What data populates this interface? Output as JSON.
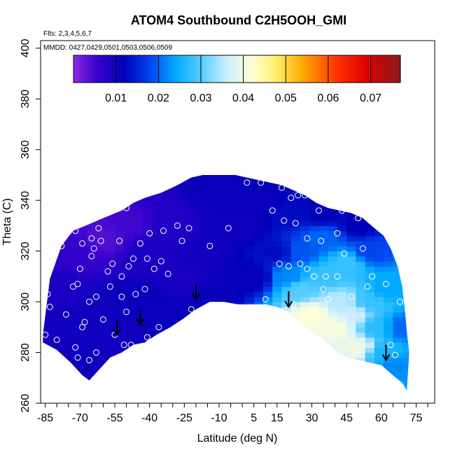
{
  "chart_data": {
    "type": "heatmap",
    "title": "ATOM4 Southbound C2H5OOH_GMI",
    "flights_note": "Flts: 2,3,4,5,6,7",
    "dates_note": "MMDD: 0427,0429,0501,0503,0506,0509",
    "xlabel": "Latitude (deg N)",
    "ylabel": "Theta (C)",
    "xlim": [
      -87,
      83
    ],
    "ylim": [
      260,
      403
    ],
    "x_ticks": [
      -85,
      -70,
      -55,
      -40,
      -25,
      -10,
      5,
      15,
      30,
      45,
      60,
      75
    ],
    "x_minor_step": 5,
    "y_ticks": [
      260,
      280,
      300,
      320,
      340,
      360,
      380,
      400
    ],
    "colorbar": {
      "range": [
        0,
        0.077
      ],
      "ticks": [
        0.01,
        0.02,
        0.03,
        0.04,
        0.05,
        0.06,
        0.07
      ],
      "tick_labels": [
        "0.01",
        "0.02",
        "0.03",
        "0.04",
        "0.05",
        "0.06",
        "0.07"
      ],
      "stops": [
        {
          "v": 0.0,
          "c": "#8a2be2"
        },
        {
          "v": 0.006,
          "c": "#3300cc"
        },
        {
          "v": 0.012,
          "c": "#0000b8"
        },
        {
          "v": 0.018,
          "c": "#0044ee"
        },
        {
          "v": 0.024,
          "c": "#00aaff"
        },
        {
          "v": 0.03,
          "c": "#55ccff"
        },
        {
          "v": 0.036,
          "c": "#cceeff"
        },
        {
          "v": 0.042,
          "c": "#ffffd8"
        },
        {
          "v": 0.048,
          "c": "#ffee66"
        },
        {
          "v": 0.054,
          "c": "#ffaa00"
        },
        {
          "v": 0.062,
          "c": "#ff3300"
        },
        {
          "v": 0.069,
          "c": "#dd0000"
        },
        {
          "v": 0.077,
          "c": "#8b1a1a"
        }
      ]
    },
    "domain_top": [
      [
        -86,
        287
      ],
      [
        -83,
        309
      ],
      [
        -78,
        322
      ],
      [
        -73,
        328
      ],
      [
        -65,
        331
      ],
      [
        -60,
        333
      ],
      [
        -52,
        336
      ],
      [
        -47,
        339
      ],
      [
        -42,
        341
      ],
      [
        -35,
        343
      ],
      [
        -28,
        346
      ],
      [
        -22,
        349
      ],
      [
        -17,
        350
      ],
      [
        -10,
        350
      ],
      [
        -3,
        350
      ],
      [
        2,
        349
      ],
      [
        7,
        348
      ],
      [
        12,
        347
      ],
      [
        17,
        346
      ],
      [
        22,
        344
      ],
      [
        27,
        342
      ],
      [
        32,
        339
      ],
      [
        37,
        337
      ],
      [
        42,
        336
      ],
      [
        47,
        335
      ],
      [
        52,
        333
      ],
      [
        57,
        329
      ],
      [
        61,
        326
      ],
      [
        64,
        321
      ],
      [
        67,
        314
      ],
      [
        69,
        306
      ],
      [
        70,
        298
      ],
      [
        71,
        288
      ],
      [
        72,
        280
      ],
      [
        71,
        265
      ]
    ],
    "domain_bottom": [
      [
        -86,
        284
      ],
      [
        -80,
        281
      ],
      [
        -74,
        276
      ],
      [
        -69,
        271
      ],
      [
        -66,
        269
      ],
      [
        -62,
        273
      ],
      [
        -57,
        278
      ],
      [
        -52,
        280
      ],
      [
        -47,
        283
      ],
      [
        -42,
        284
      ],
      [
        -37,
        287
      ],
      [
        -31,
        290
      ],
      [
        -26,
        293
      ],
      [
        -20,
        297
      ],
      [
        -14,
        300
      ],
      [
        -8,
        300
      ],
      [
        -2,
        299
      ],
      [
        4,
        299
      ],
      [
        10,
        299
      ],
      [
        15,
        298
      ],
      [
        20,
        296
      ],
      [
        25,
        292
      ],
      [
        30,
        288
      ],
      [
        35,
        285
      ],
      [
        40,
        281
      ],
      [
        45,
        278
      ],
      [
        50,
        277
      ],
      [
        55,
        276
      ],
      [
        60,
        275
      ],
      [
        65,
        271
      ],
      [
        69,
        268
      ],
      [
        71,
        265
      ]
    ],
    "field_anchors": [
      [
        -70,
        320,
        0.006
      ],
      [
        -60,
        325,
        0.004
      ],
      [
        -50,
        330,
        0.005
      ],
      [
        -80,
        305,
        0.009
      ],
      [
        -75,
        290,
        0.01
      ],
      [
        -60,
        290,
        0.01
      ],
      [
        -45,
        300,
        0.011
      ],
      [
        -40,
        320,
        0.009
      ],
      [
        -30,
        330,
        0.008
      ],
      [
        -25,
        310,
        0.009
      ],
      [
        -15,
        320,
        0.01
      ],
      [
        -10,
        305,
        0.011
      ],
      [
        0,
        330,
        0.01
      ],
      [
        5,
        310,
        0.011
      ],
      [
        -5,
        342,
        0.011
      ],
      [
        10,
        340,
        0.011
      ],
      [
        15,
        320,
        0.013
      ],
      [
        20,
        335,
        0.013
      ],
      [
        20,
        310,
        0.022
      ],
      [
        25,
        305,
        0.03
      ],
      [
        25,
        320,
        0.019
      ],
      [
        30,
        295,
        0.042
      ],
      [
        35,
        310,
        0.028
      ],
      [
        35,
        325,
        0.02
      ],
      [
        40,
        290,
        0.041
      ],
      [
        42,
        300,
        0.035
      ],
      [
        45,
        315,
        0.028
      ],
      [
        48,
        295,
        0.036
      ],
      [
        50,
        282,
        0.04
      ],
      [
        55,
        300,
        0.028
      ],
      [
        58,
        290,
        0.027
      ],
      [
        55,
        320,
        0.018
      ],
      [
        60,
        280,
        0.026
      ],
      [
        62,
        305,
        0.024
      ],
      [
        65,
        275,
        0.022
      ],
      [
        68,
        290,
        0.02
      ],
      [
        50,
        330,
        0.012
      ],
      [
        35,
        335,
        0.012
      ]
    ],
    "observations": [
      [
        -85,
        287
      ],
      [
        -84,
        303
      ],
      [
        -83,
        298
      ],
      [
        -82,
        320
      ],
      [
        -80,
        285
      ],
      [
        -78,
        322
      ],
      [
        -76,
        295
      ],
      [
        -74,
        274
      ],
      [
        -73,
        306
      ],
      [
        -72,
        328
      ],
      [
        -72,
        282
      ],
      [
        -71,
        269
      ],
      [
        -71,
        278
      ],
      [
        -71,
        307
      ],
      [
        -70,
        331
      ],
      [
        -70,
        313
      ],
      [
        -69,
        323
      ],
      [
        -69,
        290
      ],
      [
        -68,
        292
      ],
      [
        -66,
        277
      ],
      [
        -66,
        300
      ],
      [
        -65,
        318
      ],
      [
        -65,
        325
      ],
      [
        -64,
        321
      ],
      [
        -63,
        302
      ],
      [
        -63,
        280
      ],
      [
        -62,
        329
      ],
      [
        -61,
        324
      ],
      [
        -60,
        293
      ],
      [
        -58,
        312
      ],
      [
        -57,
        306
      ],
      [
        -56,
        315
      ],
      [
        -55,
        287
      ],
      [
        -53,
        324
      ],
      [
        -52,
        310
      ],
      [
        -52,
        302
      ],
      [
        -51,
        283
      ],
      [
        -50,
        296
      ],
      [
        -50,
        337
      ],
      [
        -49,
        314
      ],
      [
        -48,
        283
      ],
      [
        -47,
        317
      ],
      [
        -46,
        303
      ],
      [
        -44,
        323
      ],
      [
        -42,
        305
      ],
      [
        -41,
        317
      ],
      [
        -41,
        286
      ],
      [
        -40,
        327
      ],
      [
        -38,
        313
      ],
      [
        -36,
        290
      ],
      [
        -35,
        316
      ],
      [
        -34,
        328
      ],
      [
        -32,
        311
      ],
      [
        -28,
        330
      ],
      [
        -26,
        324
      ],
      [
        -23,
        329
      ],
      [
        -22,
        297
      ],
      [
        -14,
        322
      ],
      [
        -6,
        329
      ],
      [
        2,
        347
      ],
      [
        8,
        347
      ],
      [
        10,
        301
      ],
      [
        13,
        336
      ],
      [
        16,
        315
      ],
      [
        17,
        345
      ],
      [
        18,
        332
      ],
      [
        20,
        314
      ],
      [
        21,
        341
      ],
      [
        22,
        299
      ],
      [
        23,
        331
      ],
      [
        24,
        342
      ],
      [
        25,
        315
      ],
      [
        27,
        342
      ],
      [
        28,
        325
      ],
      [
        28,
        313
      ],
      [
        31,
        310
      ],
      [
        33,
        336
      ],
      [
        34,
        324
      ],
      [
        35,
        305
      ],
      [
        36,
        310
      ],
      [
        37,
        301
      ],
      [
        41,
        327
      ],
      [
        41,
        310
      ],
      [
        43,
        336
      ],
      [
        44,
        319
      ],
      [
        47,
        302
      ],
      [
        50,
        333
      ],
      [
        52,
        321
      ],
      [
        54,
        306
      ],
      [
        56,
        310
      ],
      [
        58,
        335
      ],
      [
        60,
        329
      ],
      [
        62,
        307
      ],
      [
        64,
        283
      ],
      [
        66,
        279
      ],
      [
        68,
        300
      ]
    ],
    "arrows": [
      [
        -54,
        287
      ],
      [
        -44,
        291
      ],
      [
        -20,
        301
      ],
      [
        20,
        298
      ],
      [
        62,
        277
      ]
    ]
  }
}
